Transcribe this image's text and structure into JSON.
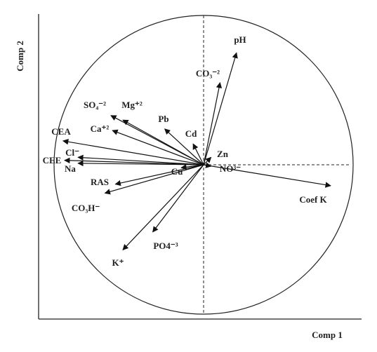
{
  "chart_data": {
    "type": "biplot",
    "x_label": "Comp 1",
    "y_label": "Comp 2",
    "xlim": [
      -1,
      1
    ],
    "ylim": [
      -1,
      1
    ],
    "vectors": [
      {
        "name": "pH",
        "x": 0.22,
        "y": 0.75
      },
      {
        "name": "CO₃⁻²",
        "x": 0.11,
        "y": 0.55
      },
      {
        "name": "SO₄⁻²",
        "x": -0.62,
        "y": 0.33
      },
      {
        "name": "Mg⁺²",
        "x": -0.54,
        "y": 0.3
      },
      {
        "name": "Ca⁺²",
        "x": -0.61,
        "y": 0.23
      },
      {
        "name": "Pb",
        "x": -0.26,
        "y": 0.24
      },
      {
        "name": "Cd",
        "x": -0.07,
        "y": 0.14
      },
      {
        "name": "CEA",
        "x": -0.94,
        "y": 0.16
      },
      {
        "name": "Cl⁻",
        "x": -0.84,
        "y": 0.05
      },
      {
        "name": "CEE",
        "x": -0.93,
        "y": 0.03
      },
      {
        "name": "Na",
        "x": -0.84,
        "y": 0.01
      },
      {
        "name": "Cu",
        "x": -0.15,
        "y": -0.02
      },
      {
        "name": "RAS",
        "x": -0.59,
        "y": -0.13
      },
      {
        "name": "CO₃H⁻",
        "x": -0.66,
        "y": -0.19
      },
      {
        "name": "PO4⁻³",
        "x": -0.34,
        "y": -0.45
      },
      {
        "name": "K⁺",
        "x": -0.54,
        "y": -0.57
      },
      {
        "name": "Coef K",
        "x": 0.85,
        "y": -0.14
      },
      {
        "name": "Zn",
        "x": 0.05,
        "y": 0.05
      },
      {
        "name": "NO³⁻",
        "x": 0.05,
        "y": -0.01
      }
    ]
  }
}
